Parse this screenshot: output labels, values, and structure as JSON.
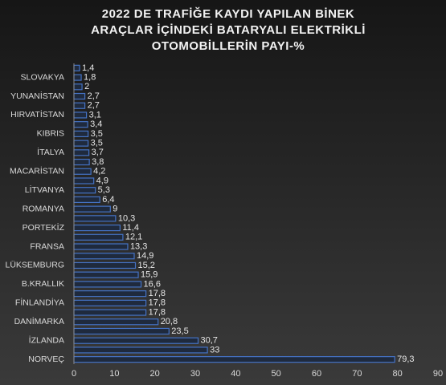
{
  "chart_data": {
    "type": "bar",
    "orientation": "horizontal",
    "title": [
      "2022 DE TRAFİĞE KAYDI YAPILAN BİNEK",
      "ARAÇLAR İÇİNDEKİ BATARYALI ELEKTRİKLİ",
      "OTOMOBİLLERİN PAYI-%"
    ],
    "categories": [
      null,
      "SLOVAKYA",
      null,
      "YUNANİSTAN",
      null,
      "HIRVATİSTAN",
      null,
      "KIBRIS",
      null,
      "İTALYA",
      null,
      "MACARİSTAN",
      null,
      "LİTVANYA",
      null,
      "ROMANYA",
      null,
      "PORTEKİZ",
      null,
      "FRANSA",
      null,
      "LÜKSEMBURG",
      null,
      "B.KRALLIK",
      null,
      "FİNLANDİYA",
      null,
      "DANİMARKA",
      null,
      "İZLANDA",
      null,
      "NORVEÇ"
    ],
    "values": [
      1.4,
      1.8,
      2,
      2.7,
      2.7,
      3.1,
      3.4,
      3.5,
      3.5,
      3.7,
      3.8,
      4.2,
      4.9,
      5.3,
      6.4,
      9,
      10.3,
      11.4,
      12.1,
      13.3,
      14.9,
      15.2,
      15.9,
      16.6,
      17.8,
      17.8,
      17.8,
      20.8,
      23.5,
      30.7,
      33,
      79.3
    ],
    "value_labels": [
      "1,4",
      "1,8",
      "2",
      "2,7",
      "2,7",
      "3,1",
      "3,4",
      "3,5",
      "3,5",
      "3,7",
      "3,8",
      "4,2",
      "4,9",
      "5,3",
      "6,4",
      "9",
      "10,3",
      "11,4",
      "12,1",
      "13,3",
      "14,9",
      "15,2",
      "15,9",
      "16,6",
      "17,8",
      "17,8",
      "17,8",
      "20,8",
      "23,5",
      "30,7",
      "33",
      "79,3"
    ],
    "color": "#4472c4",
    "xlim": [
      0,
      90
    ],
    "xticks": [
      0,
      10,
      20,
      30,
      40,
      50,
      60,
      70,
      80,
      90
    ],
    "grid": false
  }
}
